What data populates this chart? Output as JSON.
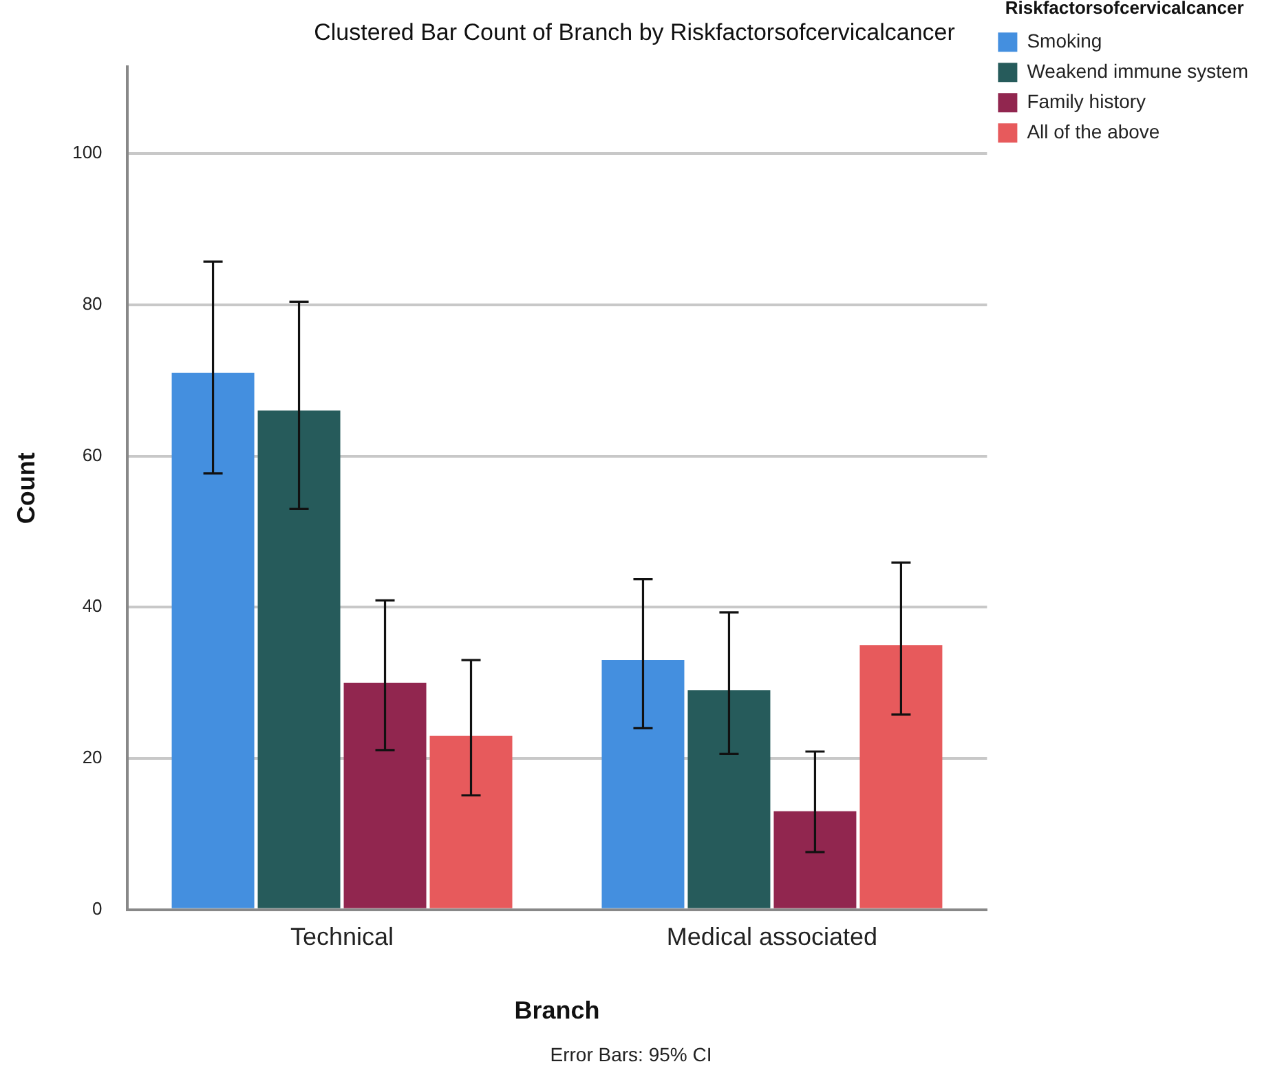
{
  "chart_data": {
    "type": "bar",
    "title": "Clustered Bar Count of Branch by Riskfactorsofcervicalcancer",
    "xlabel": "Branch",
    "ylabel": "Count",
    "legend_title": "Riskfactorsofcervicalcancer",
    "categories": [
      "Technical",
      "Medical associated"
    ],
    "series": [
      {
        "name": "Smoking",
        "color": "#448fdf",
        "values": [
          71,
          33
        ],
        "errors": [
          [
            57.7,
            85.7
          ],
          [
            24,
            43.7
          ]
        ]
      },
      {
        "name": "Weakend immune system",
        "color": "#265b5b",
        "values": [
          66,
          29
        ],
        "errors": [
          [
            53,
            80.4
          ],
          [
            20.6,
            39.3
          ]
        ]
      },
      {
        "name": "Family history",
        "color": "#91264f",
        "values": [
          30,
          13
        ],
        "errors": [
          [
            21.1,
            40.9
          ],
          [
            7.6,
            20.9
          ]
        ]
      },
      {
        "name": "All of the above",
        "color": "#e75a5c",
        "values": [
          23,
          35
        ],
        "errors": [
          [
            15.1,
            33
          ],
          [
            25.8,
            45.9
          ]
        ]
      }
    ],
    "ylim": [
      0,
      111.5
    ],
    "yticks": [
      0,
      20,
      40,
      60,
      80,
      100
    ],
    "grid": "y",
    "legend": "top right",
    "annotations": [
      "Error Bars: 95% CI"
    ]
  }
}
